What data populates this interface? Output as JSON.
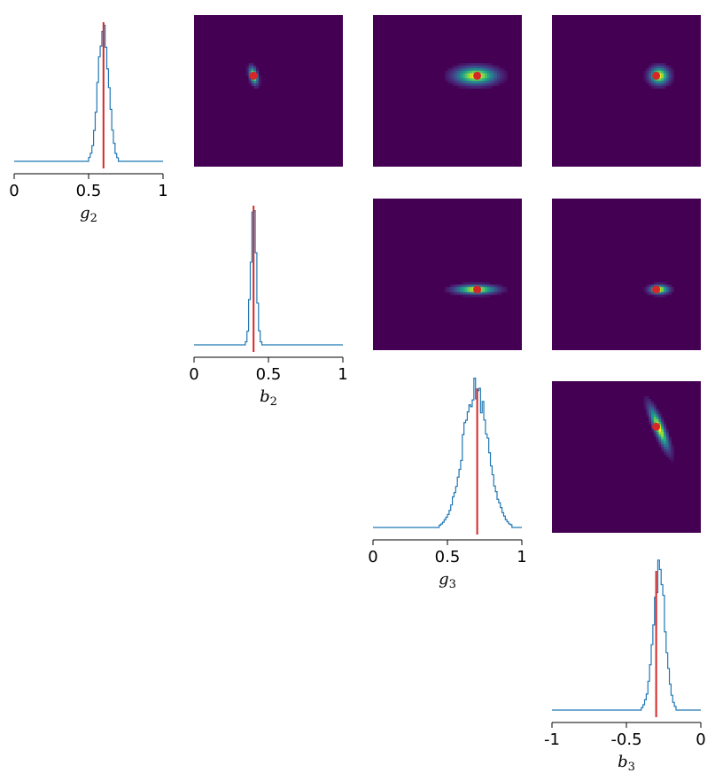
{
  "chart_data": {
    "type": "corner_plot",
    "parameters": [
      {
        "symbol": "g",
        "subscript": "2",
        "range": [
          0,
          1
        ],
        "ticks": [
          "0",
          "0.5",
          "1"
        ],
        "true_value": 0.6,
        "posterior_mean": 0.6,
        "posterior_std": 0.035
      },
      {
        "symbol": "b",
        "subscript": "2",
        "range": [
          0,
          1
        ],
        "ticks": [
          "0",
          "0.5",
          "1"
        ],
        "true_value": 0.4,
        "posterior_mean": 0.4,
        "posterior_std": 0.018
      },
      {
        "symbol": "g",
        "subscript": "3",
        "range": [
          0,
          1
        ],
        "ticks": [
          "0",
          "0.5",
          "1"
        ],
        "true_value": 0.7,
        "posterior_mean": 0.69,
        "posterior_std": 0.085
      },
      {
        "symbol": "b",
        "subscript": "3",
        "range": [
          -1,
          0
        ],
        "ticks": [
          "-1",
          "-0.5",
          "0"
        ],
        "true_value": -0.3,
        "posterior_mean": -0.28,
        "posterior_std": 0.04
      }
    ],
    "joint_panels": [
      {
        "row": 0,
        "col": 1,
        "x_param": "b2",
        "y_param": "g2",
        "truth": [
          0.4,
          0.6
        ]
      },
      {
        "row": 0,
        "col": 2,
        "x_param": "g3",
        "y_param": "g2",
        "truth": [
          0.7,
          0.6
        ]
      },
      {
        "row": 0,
        "col": 3,
        "x_param": "b3",
        "y_param": "g2",
        "truth": [
          -0.3,
          0.6
        ]
      },
      {
        "row": 1,
        "col": 2,
        "x_param": "g3",
        "y_param": "b2",
        "truth": [
          0.7,
          0.4
        ]
      },
      {
        "row": 1,
        "col": 3,
        "x_param": "b3",
        "y_param": "b2",
        "truth": [
          -0.3,
          0.4
        ]
      },
      {
        "row": 2,
        "col": 3,
        "x_param": "b3",
        "y_param": "g3",
        "truth": [
          -0.3,
          0.7
        ]
      }
    ],
    "colors": {
      "histogram": "#1f77b4",
      "truth": "#d62728",
      "heatmap_background": "#440154"
    }
  }
}
